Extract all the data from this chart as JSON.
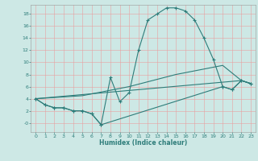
{
  "xlabel": "Humidex (Indice chaleur)",
  "ylabel": "",
  "xlim": [
    -0.5,
    23.5
  ],
  "ylim": [
    -1.5,
    19.5
  ],
  "yticks": [
    0,
    2,
    4,
    6,
    8,
    10,
    12,
    14,
    16,
    18
  ],
  "ytick_labels": [
    "-0",
    "2",
    "4",
    "6",
    "8",
    "10",
    "12",
    "14",
    "16",
    "18"
  ],
  "xticks": [
    0,
    1,
    2,
    3,
    4,
    5,
    6,
    7,
    8,
    9,
    10,
    11,
    12,
    13,
    14,
    15,
    16,
    17,
    18,
    19,
    20,
    21,
    22,
    23
  ],
  "bg_color": "#cde8e5",
  "grid_color": "#e8a0a0",
  "line_color": "#2e7d7a",
  "line1_x": [
    0,
    1,
    2,
    3,
    4,
    5,
    6,
    7,
    8,
    9,
    10,
    11,
    12,
    13,
    14,
    15,
    16,
    17,
    18,
    19,
    20,
    21,
    22,
    23
  ],
  "line1_y": [
    4,
    3,
    2.5,
    2.5,
    2,
    2,
    1.5,
    -0.3,
    7.5,
    3.5,
    5,
    12,
    17,
    18,
    19,
    19,
    18.5,
    17,
    14,
    10.5,
    6,
    5.5,
    7,
    6.5
  ],
  "line2_x": [
    0,
    1,
    2,
    3,
    4,
    5,
    6,
    7,
    20,
    21,
    22,
    23
  ],
  "line2_y": [
    4,
    3,
    2.5,
    2.5,
    2,
    2,
    1.5,
    -0.3,
    6,
    5.5,
    7,
    6.5
  ],
  "line3_x": [
    0,
    22,
    23
  ],
  "line3_y": [
    4,
    7,
    6.5
  ],
  "line4_x": [
    0,
    5,
    10,
    15,
    20,
    22,
    23
  ],
  "line4_y": [
    4,
    4.5,
    6,
    8,
    9.5,
    7,
    6.5
  ],
  "tick_fontsize": 4.5,
  "xlabel_fontsize": 5.5,
  "lw": 0.8,
  "marker_size": 3.0
}
